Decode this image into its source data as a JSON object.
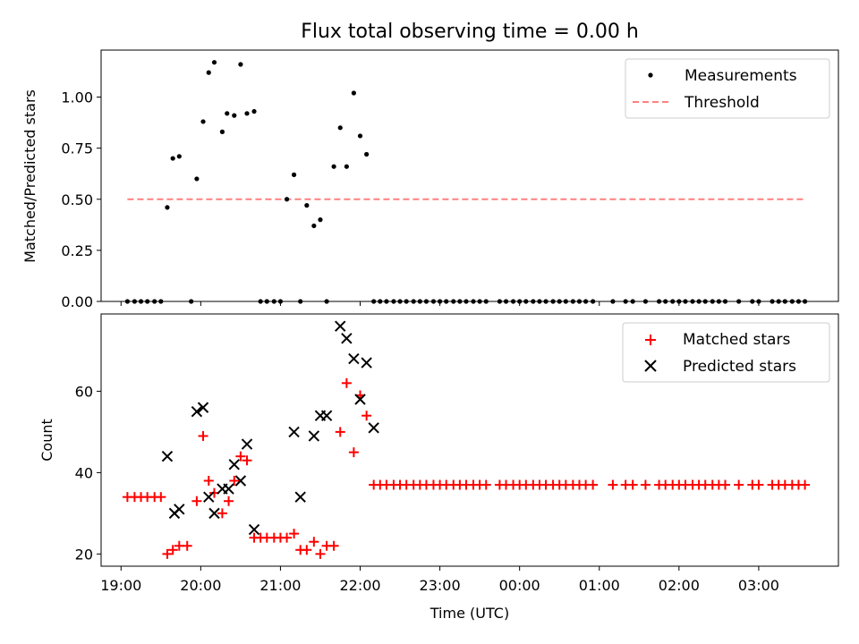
{
  "chart_data": [
    {
      "type": "scatter",
      "title": "Flux total observing time = 0.00 h",
      "xlabel": "",
      "ylabel": "Matched/Predicted stars",
      "xlim": [
        18.75,
        28.0
      ],
      "ylim": [
        0.0,
        1.23
      ],
      "yticks": [
        0.0,
        0.25,
        0.5,
        0.75,
        1.0
      ],
      "ytick_labels": [
        "0.00",
        "0.25",
        "0.50",
        "0.75",
        "1.00"
      ],
      "legend_position": "top-right",
      "series": [
        {
          "name": "Measurements",
          "kind": "dot",
          "color": "#000000",
          "x": [
            19.08,
            19.17,
            19.25,
            19.33,
            19.42,
            19.5,
            19.58,
            19.65,
            19.73,
            19.88,
            19.95,
            20.03,
            20.1,
            20.17,
            20.27,
            20.33,
            20.42,
            20.5,
            20.58,
            20.67,
            20.75,
            20.83,
            20.92,
            21.0,
            21.08,
            21.17,
            21.25,
            21.33,
            21.42,
            21.5,
            21.58,
            21.67,
            21.75,
            21.83,
            21.92,
            22.0,
            22.08,
            22.17,
            22.25,
            22.33,
            22.42,
            22.5,
            22.58,
            22.67,
            22.75,
            22.83,
            22.92,
            23.0,
            23.08,
            23.17,
            23.25,
            23.33,
            23.42,
            23.5,
            23.58,
            23.75,
            23.83,
            23.92,
            24.0,
            24.08,
            24.17,
            24.25,
            24.33,
            24.42,
            24.5,
            24.58,
            24.67,
            24.75,
            24.83,
            24.92,
            25.17,
            25.33,
            25.42,
            25.58,
            25.75,
            25.83,
            25.92,
            26.0,
            26.08,
            26.17,
            26.25,
            26.33,
            26.42,
            26.5,
            26.58,
            26.75,
            26.92,
            27.0,
            27.17,
            27.25,
            27.33,
            27.42,
            27.5,
            27.58
          ],
          "y": [
            0.0,
            0.0,
            0.0,
            0.0,
            0.0,
            0.0,
            0.46,
            0.7,
            0.71,
            0.0,
            0.6,
            0.88,
            1.12,
            1.17,
            0.83,
            0.92,
            0.91,
            1.16,
            0.92,
            0.93,
            0.0,
            0.0,
            0.0,
            0.0,
            0.5,
            0.62,
            0.0,
            0.47,
            0.37,
            0.4,
            0.0,
            0.66,
            0.85,
            0.66,
            1.02,
            0.81,
            0.72,
            0.0,
            0.0,
            0.0,
            0.0,
            0.0,
            0.0,
            0.0,
            0.0,
            0.0,
            0.0,
            0.0,
            0.0,
            0.0,
            0.0,
            0.0,
            0.0,
            0.0,
            0.0,
            0.0,
            0.0,
            0.0,
            0.0,
            0.0,
            0.0,
            0.0,
            0.0,
            0.0,
            0.0,
            0.0,
            0.0,
            0.0,
            0.0,
            0.0,
            0.0,
            0.0,
            0.0,
            0.0,
            0.0,
            0.0,
            0.0,
            0.0,
            0.0,
            0.0,
            0.0,
            0.0,
            0.0,
            0.0,
            0.0,
            0.0,
            0.0,
            0.0,
            0.0,
            0.0,
            0.0,
            0.0,
            0.0,
            0.0
          ]
        },
        {
          "name": "Threshold",
          "kind": "dashed-line",
          "color": "#ff8080",
          "x": [
            19.08,
            27.58
          ],
          "y": [
            0.5,
            0.5
          ]
        }
      ]
    },
    {
      "type": "scatter",
      "title": "",
      "xlabel": "Time (UTC)",
      "ylabel": "Count",
      "xlim": [
        18.75,
        28.0
      ],
      "ylim": [
        17.0,
        79.0
      ],
      "yticks": [
        20,
        40,
        60
      ],
      "ytick_labels": [
        "20",
        "40",
        "60"
      ],
      "xticks": [
        19,
        20,
        21,
        22,
        23,
        24,
        25,
        26,
        27
      ],
      "xtick_labels": [
        "19:00",
        "20:00",
        "21:00",
        "22:00",
        "23:00",
        "00:00",
        "01:00",
        "02:00",
        "03:00"
      ],
      "legend_position": "top-right",
      "series": [
        {
          "name": "Matched stars",
          "kind": "plus",
          "color": "#ff0000",
          "x": [
            19.08,
            19.17,
            19.25,
            19.33,
            19.42,
            19.5,
            19.58,
            19.65,
            19.73,
            19.83,
            19.95,
            20.03,
            20.1,
            20.17,
            20.27,
            20.35,
            20.42,
            20.5,
            20.58,
            20.67,
            20.75,
            20.83,
            20.92,
            21.0,
            21.08,
            21.17,
            21.25,
            21.33,
            21.42,
            21.5,
            21.58,
            21.67,
            21.75,
            21.83,
            21.92,
            22.0,
            22.08,
            22.17,
            22.25,
            22.33,
            22.42,
            22.5,
            22.58,
            22.67,
            22.75,
            22.83,
            22.92,
            23.0,
            23.08,
            23.17,
            23.25,
            23.33,
            23.42,
            23.5,
            23.58,
            23.75,
            23.83,
            23.92,
            24.0,
            24.08,
            24.17,
            24.25,
            24.33,
            24.42,
            24.5,
            24.58,
            24.67,
            24.75,
            24.83,
            24.92,
            25.17,
            25.33,
            25.42,
            25.58,
            25.75,
            25.83,
            25.92,
            26.0,
            26.08,
            26.17,
            26.25,
            26.33,
            26.42,
            26.5,
            26.58,
            26.75,
            26.92,
            27.0,
            27.17,
            27.25,
            27.33,
            27.42,
            27.5,
            27.58
          ],
          "y": [
            34,
            34,
            34,
            34,
            34,
            34,
            20,
            21,
            22,
            22,
            33,
            49,
            38,
            35,
            30,
            33,
            38,
            44,
            43,
            24,
            24,
            24,
            24,
            24,
            24,
            25,
            21,
            21,
            23,
            20,
            22,
            22,
            50,
            62,
            45,
            59,
            54,
            37,
            37,
            37,
            37,
            37,
            37,
            37,
            37,
            37,
            37,
            37,
            37,
            37,
            37,
            37,
            37,
            37,
            37,
            37,
            37,
            37,
            37,
            37,
            37,
            37,
            37,
            37,
            37,
            37,
            37,
            37,
            37,
            37,
            37,
            37,
            37,
            37,
            37,
            37,
            37,
            37,
            37,
            37,
            37,
            37,
            37,
            37,
            37,
            37,
            37,
            37,
            37,
            37,
            37,
            37,
            37,
            37
          ]
        },
        {
          "name": "Predicted stars",
          "kind": "x",
          "color": "#000000",
          "x": [
            19.58,
            19.67,
            19.73,
            19.95,
            20.03,
            20.1,
            20.17,
            20.27,
            20.35,
            20.42,
            20.5,
            20.58,
            20.67,
            21.17,
            21.25,
            21.42,
            21.5,
            21.58,
            21.75,
            21.83,
            21.92,
            22.0,
            22.08,
            22.17
          ],
          "y": [
            44,
            30,
            31,
            55,
            56,
            34,
            30,
            36,
            36,
            42,
            38,
            47,
            26,
            50,
            34,
            49,
            54,
            54,
            76,
            73,
            68,
            58,
            67,
            51
          ]
        }
      ]
    }
  ]
}
